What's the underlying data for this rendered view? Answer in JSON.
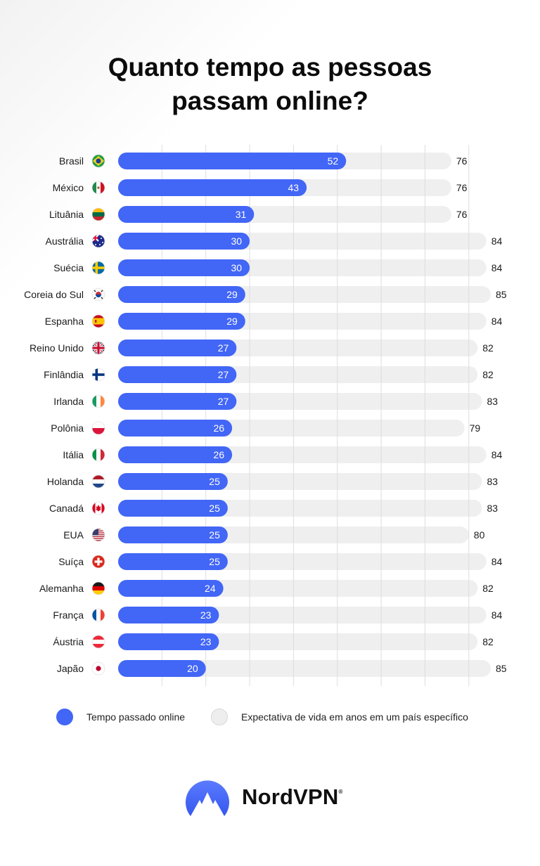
{
  "title_lines": [
    "Quanto tempo as pessoas",
    "passam online?"
  ],
  "colors": {
    "online": "#4266f6",
    "life": "#efefef",
    "grid": "#dddddd"
  },
  "chart_data": {
    "type": "bar",
    "orientation": "horizontal",
    "title": "Quanto tempo as pessoas passam online?",
    "categories": [
      "Brasil",
      "México",
      "Lituânia",
      "Austrália",
      "Suécia",
      "Coreia do Sul",
      "Espanha",
      "Reino Unido",
      "Finlândia",
      "Irlanda",
      "Polônia",
      "Itália",
      "Holanda",
      "Canadá",
      "EUA",
      "Suíça",
      "Alemanha",
      "França",
      "Áustria",
      "Japão"
    ],
    "flag_icons": [
      "flag-brazil-icon",
      "flag-mexico-icon",
      "flag-lithuania-icon",
      "flag-australia-icon",
      "flag-sweden-icon",
      "flag-south-korea-icon",
      "flag-spain-icon",
      "flag-uk-icon",
      "flag-finland-icon",
      "flag-ireland-icon",
      "flag-poland-icon",
      "flag-italy-icon",
      "flag-netherlands-icon",
      "flag-canada-icon",
      "flag-usa-icon",
      "flag-switzerland-icon",
      "flag-germany-icon",
      "flag-france-icon",
      "flag-austria-icon",
      "flag-japan-icon"
    ],
    "series": [
      {
        "name": "Tempo passado online",
        "values": [
          52,
          43,
          31,
          30,
          30,
          29,
          29,
          27,
          27,
          27,
          26,
          26,
          25,
          25,
          25,
          25,
          24,
          23,
          23,
          20
        ]
      },
      {
        "name": "Expectativa de vida em anos em um país específico",
        "values": [
          76,
          76,
          76,
          84,
          84,
          85,
          84,
          82,
          82,
          83,
          79,
          84,
          83,
          83,
          80,
          84,
          82,
          84,
          82,
          85
        ]
      }
    ],
    "xlim": [
      0,
      85
    ],
    "grid": true,
    "legend_position": "bottom"
  },
  "legend": {
    "online_label": "Tempo passado online",
    "life_label": "Expectativa de vida em anos em um país específico"
  },
  "brand": {
    "name": "NordVPN",
    "mark": "®"
  }
}
